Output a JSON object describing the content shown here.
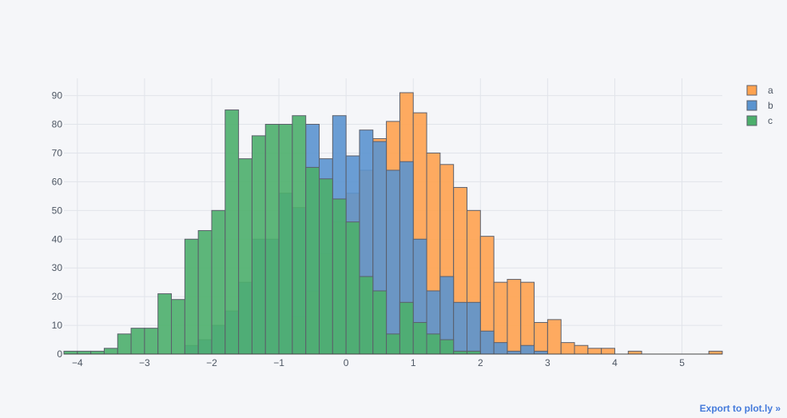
{
  "export_link": "Export to plot.ly »",
  "colors": {
    "a": "#ffa24f",
    "b": "#5b94cf",
    "c": "#4caf6c",
    "grid": "#e1e4ea",
    "outline": "#5b5f6b",
    "background": "#f5f6f9"
  },
  "chart_data": {
    "type": "bar",
    "mode": "overlay-histogram",
    "title": "",
    "xlabel": "",
    "ylabel": "",
    "xlim": [
      -4.2,
      5.6
    ],
    "ylim": [
      0,
      96
    ],
    "x_ticks": [
      -4,
      -3,
      -2,
      -1,
      0,
      1,
      2,
      3,
      4,
      5
    ],
    "x_tick_labels": [
      "−4",
      "−3",
      "−2",
      "−1",
      "0",
      "1",
      "2",
      "3",
      "4",
      "5"
    ],
    "y_ticks": [
      0,
      10,
      20,
      30,
      40,
      50,
      60,
      70,
      80,
      90
    ],
    "y_tick_labels": [
      "0",
      "10",
      "20",
      "30",
      "40",
      "50",
      "60",
      "70",
      "80",
      "90"
    ],
    "grid": true,
    "legend_position": "top-right",
    "bin_width": 0.2,
    "series": [
      {
        "name": "a",
        "color": "#ffa24f",
        "bins": [
          [
            -0.8,
            13
          ],
          [
            -0.6,
            22
          ],
          [
            -0.4,
            35
          ],
          [
            -0.2,
            46
          ],
          [
            0.0,
            56
          ],
          [
            0.2,
            64
          ],
          [
            0.4,
            75
          ],
          [
            0.6,
            81
          ],
          [
            0.8,
            91
          ],
          [
            1.0,
            84
          ],
          [
            1.2,
            70
          ],
          [
            1.4,
            66
          ],
          [
            1.6,
            58
          ],
          [
            1.8,
            50
          ],
          [
            2.0,
            41
          ],
          [
            2.2,
            25
          ],
          [
            2.4,
            26
          ],
          [
            2.6,
            25
          ],
          [
            2.8,
            11
          ],
          [
            3.0,
            12
          ],
          [
            3.2,
            4
          ],
          [
            3.4,
            3
          ],
          [
            3.6,
            2
          ],
          [
            3.8,
            2
          ],
          [
            4.2,
            1
          ],
          [
            5.4,
            1
          ]
        ]
      },
      {
        "name": "b",
        "color": "#5b94cf",
        "bins": [
          [
            -2.4,
            3
          ],
          [
            -2.2,
            5
          ],
          [
            -2.0,
            10
          ],
          [
            -1.8,
            15
          ],
          [
            -1.6,
            25
          ],
          [
            -1.4,
            40
          ],
          [
            -1.2,
            40
          ],
          [
            -1.0,
            56
          ],
          [
            -0.8,
            51
          ],
          [
            -0.6,
            80
          ],
          [
            -0.4,
            68
          ],
          [
            -0.2,
            83
          ],
          [
            0.0,
            69
          ],
          [
            0.2,
            78
          ],
          [
            0.4,
            74
          ],
          [
            0.6,
            64
          ],
          [
            0.8,
            67
          ],
          [
            1.0,
            40
          ],
          [
            1.2,
            22
          ],
          [
            1.4,
            27
          ],
          [
            1.6,
            18
          ],
          [
            1.8,
            18
          ],
          [
            2.0,
            8
          ],
          [
            2.2,
            4
          ],
          [
            2.4,
            1
          ],
          [
            2.6,
            3
          ],
          [
            2.8,
            1
          ]
        ]
      },
      {
        "name": "c",
        "color": "#4caf6c",
        "bins": [
          [
            -4.2,
            1
          ],
          [
            -4.0,
            1
          ],
          [
            -3.8,
            1
          ],
          [
            -3.6,
            2
          ],
          [
            -3.4,
            7
          ],
          [
            -3.2,
            9
          ],
          [
            -3.0,
            9
          ],
          [
            -2.8,
            21
          ],
          [
            -2.6,
            19
          ],
          [
            -2.4,
            40
          ],
          [
            -2.2,
            43
          ],
          [
            -2.0,
            50
          ],
          [
            -1.8,
            85
          ],
          [
            -1.6,
            68
          ],
          [
            -1.4,
            76
          ],
          [
            -1.2,
            80
          ],
          [
            -1.0,
            80
          ],
          [
            -0.8,
            83
          ],
          [
            -0.6,
            65
          ],
          [
            -0.4,
            61
          ],
          [
            -0.2,
            54
          ],
          [
            0.0,
            46
          ],
          [
            0.2,
            27
          ],
          [
            0.4,
            22
          ],
          [
            0.6,
            7
          ],
          [
            0.8,
            18
          ],
          [
            1.0,
            11
          ],
          [
            1.2,
            7
          ],
          [
            1.4,
            5
          ],
          [
            1.6,
            1
          ],
          [
            1.8,
            1
          ]
        ]
      }
    ]
  }
}
